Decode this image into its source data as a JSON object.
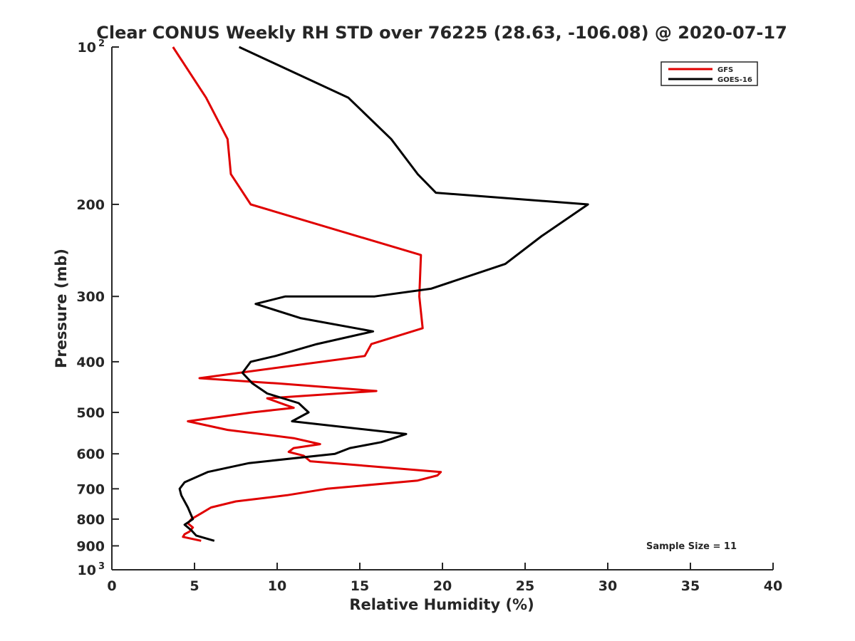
{
  "chart_data": {
    "type": "line",
    "title": "Clear CONUS Weekly RH STD over 76225 (28.63, -106.08) @ 2020-07-17",
    "xlabel": "Relative Humidity (%)",
    "ylabel": "Pressure (mb)",
    "xlim": [
      0,
      40
    ],
    "ylim": [
      100,
      1000
    ],
    "y_scale": "log",
    "y_reversed": true,
    "x_ticks": [
      0,
      5,
      10,
      15,
      20,
      25,
      30,
      35,
      40
    ],
    "x_tick_labels": [
      "0",
      "5",
      "10",
      "15",
      "20",
      "25",
      "30",
      "35",
      "40"
    ],
    "y_ticks": [
      100,
      200,
      300,
      400,
      500,
      600,
      700,
      800,
      900,
      1000
    ],
    "y_tick_labels": [
      {
        "base": "10",
        "exp": "2"
      },
      {
        "base": "200",
        "exp": ""
      },
      {
        "base": "300",
        "exp": ""
      },
      {
        "base": "400",
        "exp": ""
      },
      {
        "base": "500",
        "exp": ""
      },
      {
        "base": "600",
        "exp": ""
      },
      {
        "base": "700",
        "exp": ""
      },
      {
        "base": "800",
        "exp": ""
      },
      {
        "base": "900",
        "exp": ""
      },
      {
        "base": "10",
        "exp": "3"
      }
    ],
    "grid": false,
    "legend_position": "top-right",
    "annotation": "Sample Size = 11",
    "series": [
      {
        "name": "GFS",
        "color": "#e00000",
        "points": [
          [
            3.7,
            100
          ],
          [
            5.7,
            125
          ],
          [
            7.0,
            150
          ],
          [
            7.2,
            175
          ],
          [
            8.4,
            200
          ],
          [
            18.7,
            250
          ],
          [
            18.6,
            300
          ],
          [
            18.8,
            345
          ],
          [
            15.7,
            370
          ],
          [
            15.3,
            390
          ],
          [
            5.3,
            430
          ],
          [
            10.0,
            440
          ],
          [
            16.0,
            455
          ],
          [
            9.4,
            470
          ],
          [
            10.6,
            485
          ],
          [
            11.0,
            490
          ],
          [
            8.5,
            500
          ],
          [
            4.6,
            520
          ],
          [
            7.0,
            540
          ],
          [
            11.0,
            560
          ],
          [
            12.6,
            575
          ],
          [
            11.0,
            585
          ],
          [
            10.7,
            595
          ],
          [
            11.6,
            605
          ],
          [
            12.0,
            620
          ],
          [
            19.9,
            650
          ],
          [
            19.7,
            660
          ],
          [
            18.5,
            675
          ],
          [
            13.0,
            700
          ],
          [
            10.6,
            720
          ],
          [
            7.5,
            740
          ],
          [
            6.0,
            760
          ],
          [
            5.4,
            780
          ],
          [
            4.8,
            800
          ],
          [
            4.6,
            815
          ],
          [
            4.9,
            830
          ],
          [
            4.7,
            845
          ],
          [
            4.4,
            855
          ],
          [
            4.3,
            865
          ],
          [
            5.4,
            880
          ]
        ]
      },
      {
        "name": "GOES-16",
        "color": "#000000",
        "points": [
          [
            7.7,
            100
          ],
          [
            14.3,
            125
          ],
          [
            16.9,
            150
          ],
          [
            18.5,
            175
          ],
          [
            19.6,
            190
          ],
          [
            28.8,
            200
          ],
          [
            26.0,
            230
          ],
          [
            23.8,
            260
          ],
          [
            19.3,
            290
          ],
          [
            15.9,
            300
          ],
          [
            10.5,
            300
          ],
          [
            8.7,
            310
          ],
          [
            11.4,
            330
          ],
          [
            15.8,
            350
          ],
          [
            12.4,
            370
          ],
          [
            9.9,
            390
          ],
          [
            8.4,
            400
          ],
          [
            7.9,
            420
          ],
          [
            8.5,
            440
          ],
          [
            9.4,
            460
          ],
          [
            11.3,
            480
          ],
          [
            11.9,
            500
          ],
          [
            10.9,
            520
          ],
          [
            17.8,
            550
          ],
          [
            16.3,
            570
          ],
          [
            14.4,
            585
          ],
          [
            13.5,
            600
          ],
          [
            8.3,
            625
          ],
          [
            5.8,
            650
          ],
          [
            4.4,
            680
          ],
          [
            4.1,
            700
          ],
          [
            4.2,
            720
          ],
          [
            4.6,
            760
          ],
          [
            4.9,
            800
          ],
          [
            4.4,
            820
          ],
          [
            4.8,
            840
          ],
          [
            5.1,
            860
          ],
          [
            6.2,
            880
          ]
        ]
      }
    ]
  }
}
